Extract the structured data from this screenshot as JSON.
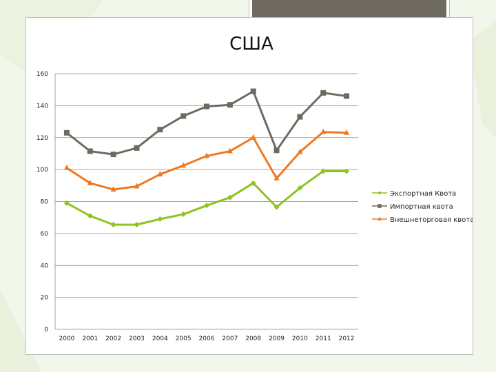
{
  "colors": {
    "export": "#8fc31f",
    "import": "#6e6a60",
    "trade": "#f07820",
    "grid": "#8c8c8c",
    "background": "#f2f7ec"
  },
  "chart_data": {
    "type": "line",
    "title": "США",
    "xlabel": "",
    "ylabel": "",
    "categories": [
      "2000",
      "2001",
      "2002",
      "2003",
      "2004",
      "2005",
      "2006",
      "2007",
      "2008",
      "2009",
      "2010",
      "2011",
      "2012"
    ],
    "ylim": [
      0,
      160
    ],
    "yticks": [
      "0",
      "20",
      "40",
      "60",
      "80",
      "100",
      "120",
      "140",
      "160"
    ],
    "grid": true,
    "legend_position": "right",
    "series": [
      {
        "name": "Экспортная Квота",
        "marker": "diamond",
        "color": "#8fc31f",
        "values": [
          79,
          71,
          65.5,
          65.5,
          69,
          72,
          77.5,
          82.5,
          91.5,
          76.5,
          88.5,
          99,
          99
        ]
      },
      {
        "name": "Импортная квота",
        "marker": "square",
        "color": "#6e6a60",
        "values": [
          123,
          111.5,
          109.5,
          113.5,
          125,
          133.5,
          139.5,
          140.5,
          149,
          112,
          133,
          148,
          146
        ]
      },
      {
        "name": "Внешнеторговая квота",
        "marker": "triangle",
        "color": "#f07820",
        "values": [
          101,
          91.5,
          87.5,
          89.5,
          97,
          102.5,
          108.5,
          111.5,
          120,
          94.5,
          111,
          123.5,
          123
        ]
      }
    ]
  }
}
